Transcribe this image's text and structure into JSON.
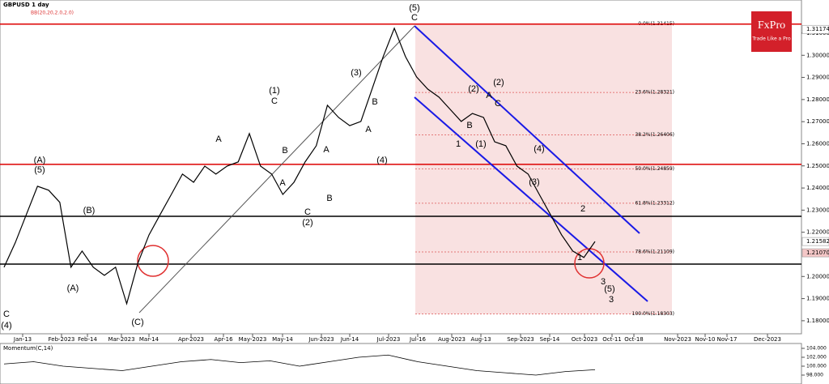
{
  "chart_data": {
    "type": "line",
    "title": "GBPUSD  1 day",
    "indicator": "BB(20,20,2.0,2.0)",
    "values": [
      1.2042,
      1.2152,
      1.228,
      1.2408,
      1.239,
      1.2335,
      1.2042,
      1.2115,
      1.2042,
      1.2005,
      1.2042,
      1.1877,
      1.206,
      1.2188,
      1.228,
      1.2371,
      1.2463,
      1.2426,
      1.2499,
      1.2463,
      1.2499,
      1.2518,
      1.2646,
      1.2499,
      1.2463,
      1.2371,
      1.2426,
      1.2518,
      1.2591,
      1.2774,
      1.2719,
      1.2682,
      1.2701,
      1.2847,
      1.2994,
      1.3122,
      1.2994,
      1.2902,
      1.2847,
      1.2811,
      1.2756,
      1.2701,
      1.2737,
      1.2719,
      1.2609,
      1.2591,
      1.2499,
      1.2463,
      1.2371,
      1.228,
      1.2188,
      1.2115,
      1.2086,
      1.2158
    ],
    "color": "#000000",
    "ylim": [
      1.1741,
      1.325
    ],
    "yticks": [
      {
        "value": 1.31,
        "label": "1.31000"
      },
      {
        "value": 1.3,
        "label": "1.30000"
      },
      {
        "value": 1.29,
        "label": "1.29000"
      },
      {
        "value": 1.28,
        "label": "1.28000"
      },
      {
        "value": 1.27,
        "label": "1.27000"
      },
      {
        "value": 1.26,
        "label": "1.26000"
      },
      {
        "value": 1.25,
        "label": "1.25000"
      },
      {
        "value": 1.24,
        "label": "1.24000"
      },
      {
        "value": 1.23,
        "label": "1.23000"
      },
      {
        "value": 1.22,
        "label": "1.22000"
      },
      {
        "value": 1.2,
        "label": "1.20000"
      },
      {
        "value": 1.19,
        "label": "1.19000"
      },
      {
        "value": 1.18,
        "label": "1.18000"
      }
    ],
    "price_labels": [
      {
        "value": 1.31174,
        "label": "1.31174"
      },
      {
        "value": 1.21582,
        "label": "1.21582"
      },
      {
        "value": 1.2107,
        "label": "1.21070"
      }
    ],
    "xlabels": [
      "Jan-13",
      "Feb-2023",
      "Feb-14",
      "Mar-2023",
      "Mar-14",
      "Apr-2023",
      "Apr-16",
      "May-2023",
      "May-14",
      "Jun-2023",
      "Jun-14",
      "Jul-2023",
      "Jul-16",
      "Aug-2023",
      "Aug-13",
      "Sep-2023",
      "Sep-14",
      "Oct-2023",
      "Oct-11",
      "Oct-18",
      "Nov-2023",
      "Nov-10",
      "Nov-17",
      "Dec-2023"
    ],
    "red_levels": [
      1.3141,
      1.2507
    ],
    "black_levels": [
      1.2272,
      1.2056
    ],
    "fib": [
      {
        "value": 1.31415,
        "label": "0.0%(1.31415)"
      },
      {
        "value": 1.28321,
        "label": "23.6%(1.28321)"
      },
      {
        "value": 1.26406,
        "label": "38.2%(1.26406)"
      },
      {
        "value": 1.24859,
        "label": "50.0%(1.24859)"
      },
      {
        "value": 1.23312,
        "label": "61.8%(1.23312)"
      },
      {
        "value": 1.21109,
        "label": "78.6%(1.21109)"
      },
      {
        "value": 1.18303,
        "label": "100.0%(1.18303)"
      }
    ],
    "annotations": [
      "(5)",
      "C",
      "(3)",
      "B",
      "A",
      "(4)",
      "(1)",
      "C",
      "(2)",
      "C",
      "B",
      "A",
      "B",
      "A",
      "(A)",
      "(5)",
      "(B)",
      "(A)",
      "C",
      "(4)",
      "(C)",
      "A",
      "(2)",
      "(2)",
      "A",
      "C",
      "B",
      "(1)",
      "(4)",
      "(3)",
      "2",
      "1",
      "3",
      "(5)",
      "1",
      "3"
    ],
    "momentum": {
      "title": "Momentum(C,14)",
      "ylim": [
        96.0,
        105.09
      ],
      "yticks": [
        {
          "value": 104,
          "label": "104.000"
        },
        {
          "value": 102,
          "label": "102.000"
        },
        {
          "value": 100,
          "label": "100.000"
        },
        {
          "value": 98,
          "label": "98.000"
        }
      ],
      "values": [
        100.5,
        101,
        100,
        99.5,
        99,
        100,
        101,
        101.5,
        100.8,
        101.2,
        100,
        101,
        102,
        102.5,
        101,
        100,
        99,
        98.5,
        98,
        98.8,
        99.2
      ]
    }
  },
  "logo": {
    "name": "FxPro",
    "tagline": "Trade Like a Pro"
  }
}
